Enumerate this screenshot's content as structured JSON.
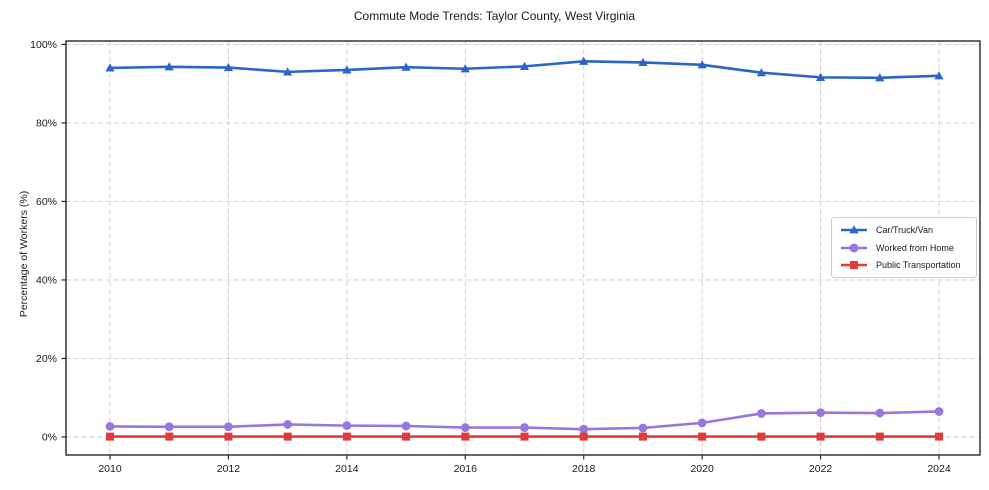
{
  "colors": {
    "background": "#ffffff",
    "grid": "#cccccc",
    "spine": "#262626",
    "tick_text": "#1a1a1a"
  },
  "chart_data": {
    "type": "line",
    "title": "Commute Mode Trends: Taylor County, West Virginia",
    "xlabel": "",
    "ylabel": "Percentage of Workers (%)",
    "x": [
      2010,
      2011,
      2012,
      2013,
      2014,
      2015,
      2016,
      2017,
      2018,
      2019,
      2020,
      2021,
      2022,
      2023,
      2024
    ],
    "xticks": [
      2010,
      2012,
      2014,
      2016,
      2018,
      2020,
      2022,
      2024
    ],
    "yticks": [
      0,
      20,
      40,
      60,
      80,
      100
    ],
    "ytick_suffix": "%",
    "ylim": [
      -4.6,
      100.9
    ],
    "xlim": [
      2009.3,
      2024.7
    ],
    "grid": true,
    "legend_position": "center right",
    "series": [
      {
        "name": "Car/Truck/Van",
        "color": "#2b65c5",
        "marker": "triangle",
        "values": [
          94.0,
          94.3,
          94.1,
          93.0,
          93.5,
          94.2,
          93.8,
          94.4,
          95.7,
          95.4,
          94.8,
          92.8,
          91.6,
          91.5,
          92.0
        ]
      },
      {
        "name": "Worked from Home",
        "color": "#9777de",
        "marker": "circle",
        "values": [
          2.7,
          2.6,
          2.6,
          3.2,
          2.9,
          2.8,
          2.4,
          2.4,
          2.0,
          2.3,
          3.6,
          6.0,
          6.2,
          6.1,
          6.5
        ]
      },
      {
        "name": "Public Transportation",
        "color": "#e23b3c",
        "marker": "square",
        "values": [
          0.1,
          0.1,
          0.1,
          0.1,
          0.1,
          0.1,
          0.1,
          0.1,
          0.1,
          0.1,
          0.1,
          0.1,
          0.1,
          0.1,
          0.1
        ]
      }
    ]
  }
}
